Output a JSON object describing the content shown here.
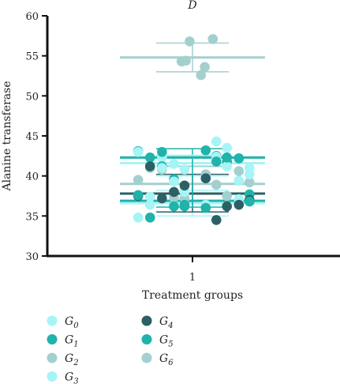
{
  "chart_data": {
    "type": "scatter",
    "title": "D",
    "xlabel": "Treatment groups",
    "ylabel": "Alanine transferase",
    "ylim": [
      30,
      60
    ],
    "yticks": [
      30,
      35,
      40,
      45,
      50,
      55,
      60
    ],
    "xticks": [
      "1"
    ],
    "legend_placement": "bottom",
    "series": [
      {
        "name": "G",
        "sub": "0",
        "color": "#a6f4f6",
        "mean": 36.6,
        "sd_low": 35.0,
        "sd_high": 38.2,
        "values": [
          34.8,
          36.3,
          37.4,
          39.4,
          40.8,
          41.0,
          41.5,
          42.3,
          43.5,
          44.3
        ]
      },
      {
        "name": "G",
        "sub": "1",
        "color": "#1fb3aa",
        "mean": 42.3,
        "sd_low": 41.2,
        "sd_high": 43.4,
        "values": [
          36.2,
          37.7,
          39.6,
          41.2,
          41.8,
          42.5,
          43.1,
          43.2,
          42.3,
          42.2
        ]
      },
      {
        "name": "G",
        "sub": "2",
        "color": "#a4cfcf",
        "mean": 39.0,
        "sd_low": 37.8,
        "sd_high": 41.2,
        "values": [
          37.5,
          38.9,
          39.5,
          40.2,
          41.0,
          40.6,
          37.2,
          39.2,
          37.3,
          40.8
        ]
      },
      {
        "name": "G",
        "sub": "3",
        "color": "#a6f4f6",
        "mean": 41.6,
        "sd_low": 40.0,
        "sd_high": 42.6,
        "values": [
          36.4,
          37.1,
          38.0,
          40.2,
          39.3,
          41.0,
          41.2,
          42.4,
          43.0,
          36.4
        ]
      },
      {
        "name": "G",
        "sub": "4",
        "color": "#2b6065",
        "mean": 37.8,
        "sd_low": 35.5,
        "sd_high": 40.2,
        "values": [
          38.0,
          37.2,
          36.2,
          34.5,
          37.5,
          39.7,
          41.2,
          36.4,
          38.8,
          37.0
        ]
      },
      {
        "name": "G",
        "sub": "5",
        "color": "#1fb3aa",
        "mean": 36.9,
        "sd_low": 36.1,
        "sd_high": 42.4,
        "values": [
          37.6,
          36.0,
          34.8,
          42.2,
          36.4,
          36.8,
          36.2,
          43.0,
          42.3,
          41.8
        ]
      },
      {
        "name": "G",
        "sub": "6",
        "color": "#a4cfcf",
        "mean": 54.8,
        "sd_low": 53.0,
        "sd_high": 56.6,
        "values": [
          56.8,
          57.1,
          54.4,
          54.3,
          53.6,
          52.6
        ]
      }
    ]
  }
}
